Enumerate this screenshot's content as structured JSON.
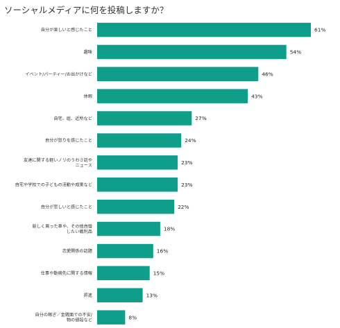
{
  "chart_data": {
    "type": "bar",
    "orientation": "horizontal",
    "title": "ソーシャルメディアに何を投稿しますか？",
    "xlabel": "",
    "ylabel": "",
    "value_suffix": "%",
    "xlim": [
      0,
      61
    ],
    "grid": false,
    "bar_color": "#0f9e8a",
    "categories": [
      [
        "自分が楽しいと感じたこと"
      ],
      [
        "趣味"
      ],
      [
        "イベント/パーティー/お出かけなど"
      ],
      [
        "休暇"
      ],
      [
        "自宅、庭、近所など"
      ],
      [
        "自分が怒りを感じたこと"
      ],
      [
        "友達に関する軽いノリのうわさ話や",
        "ニュース"
      ],
      [
        "自宅や学校での子どもの活動や成果など"
      ],
      [
        "自分が悲しいと感じたこと"
      ],
      [
        "新しく買った車や、その他自慢",
        "したい戦利品"
      ],
      [
        "恋愛関係の話題"
      ],
      [
        "仕事や勤務先に関する情報"
      ],
      [
        "昇進"
      ],
      [
        "自分の稼ぎ／金銭面での不安/",
        "物の値段など"
      ]
    ],
    "values": [
      61,
      54,
      46,
      43,
      27,
      24,
      23,
      23,
      22,
      18,
      16,
      15,
      13,
      8
    ]
  }
}
